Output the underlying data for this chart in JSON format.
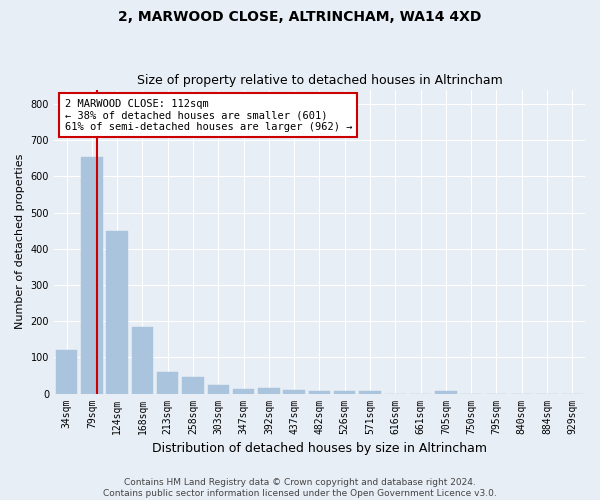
{
  "title": "2, MARWOOD CLOSE, ALTRINCHAM, WA14 4XD",
  "subtitle": "Size of property relative to detached houses in Altrincham",
  "xlabel": "Distribution of detached houses by size in Altrincham",
  "ylabel": "Number of detached properties",
  "bins": [
    "34sqm",
    "79sqm",
    "124sqm",
    "168sqm",
    "213sqm",
    "258sqm",
    "303sqm",
    "347sqm",
    "392sqm",
    "437sqm",
    "482sqm",
    "526sqm",
    "571sqm",
    "616sqm",
    "661sqm",
    "705sqm",
    "750sqm",
    "795sqm",
    "840sqm",
    "884sqm",
    "929sqm"
  ],
  "values": [
    120,
    655,
    450,
    183,
    60,
    47,
    25,
    12,
    15,
    10,
    7,
    7,
    8,
    0,
    0,
    8,
    0,
    0,
    0,
    0,
    0
  ],
  "bar_color": "#aac4de",
  "bar_edge_color": "#aac4de",
  "vline_color": "#cc0000",
  "annotation_text": "2 MARWOOD CLOSE: 112sqm\n← 38% of detached houses are smaller (601)\n61% of semi-detached houses are larger (962) →",
  "annotation_box_color": "white",
  "annotation_box_edge_color": "#cc0000",
  "bg_color": "#e8eef5",
  "plot_bg_color": "#e8eef5",
  "grid_color": "white",
  "ylim": [
    0,
    840
  ],
  "yticks": [
    0,
    100,
    200,
    300,
    400,
    500,
    600,
    700,
    800
  ],
  "footnote": "Contains HM Land Registry data © Crown copyright and database right 2024.\nContains public sector information licensed under the Open Government Licence v3.0.",
  "title_fontsize": 10,
  "subtitle_fontsize": 9,
  "xlabel_fontsize": 9,
  "ylabel_fontsize": 8,
  "tick_fontsize": 7,
  "annot_fontsize": 7.5,
  "footnote_fontsize": 6.5
}
